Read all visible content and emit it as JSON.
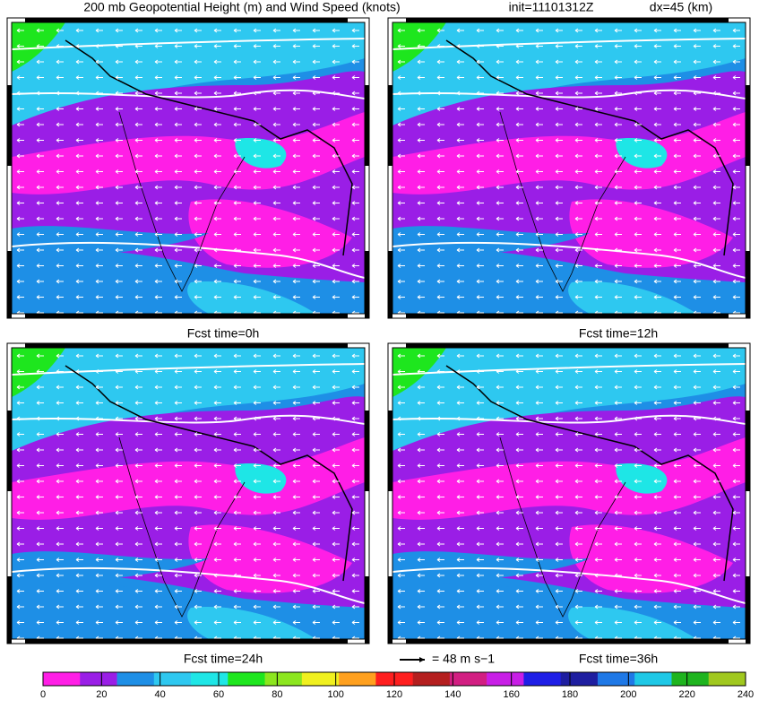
{
  "header": {
    "title": "200 mb Geopotential Height (m) and Wind Speed (knots)",
    "init": "init=11101312Z",
    "dx": "dx=45 (km)"
  },
  "panels": [
    {
      "label": "Fcst time=0h"
    },
    {
      "label": "Fcst time=12h"
    },
    {
      "label": "Fcst time=24h"
    },
    {
      "label": "Fcst time=36h"
    }
  ],
  "legend": {
    "vector_label": "= 48 m s−1"
  },
  "colorbar": {
    "ticks": [
      0,
      20,
      40,
      60,
      80,
      100,
      120,
      140,
      160,
      180,
      200,
      220,
      240
    ],
    "colors": [
      "#ff1ee6",
      "#9a1ee6",
      "#1e8fe6",
      "#2ec8f0",
      "#1ee6e6",
      "#1ee61e",
      "#8ce61e",
      "#f0f01e",
      "#ffa01e",
      "#ff1e1e",
      "#b41e1e",
      "#d21e82",
      "#c81ee6",
      "#1e1ee6",
      "#1e1ea0",
      "#1e78e6",
      "#1ec8e6",
      "#1eb41e",
      "#a0c81e"
    ]
  }
}
